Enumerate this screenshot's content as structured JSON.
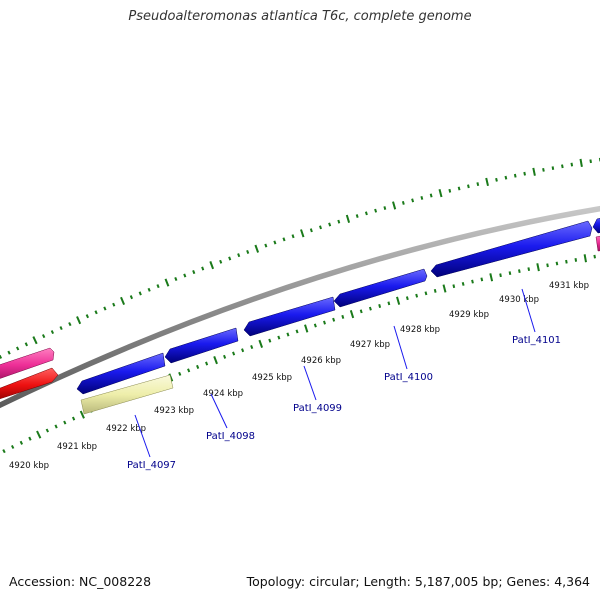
{
  "title": "Pseudoalteromonas atlantica T6c, complete genome",
  "footer": {
    "accession": "Accession: NC_008228",
    "summary": "Topology: circular; Length: 5,187,005 bp; Genes: 4,364"
  },
  "scale_labels": [
    "4920 kbp",
    "4921 kbp",
    "4922 kbp",
    "4923 kbp",
    "4924 kbp",
    "4925 kbp",
    "4926 kbp",
    "4927 kbp",
    "4928 kbp",
    "4929 kbp",
    "4930 kbp",
    "4931 kbp"
  ],
  "gene_labels": [
    "PatI_4097",
    "PatI_4098",
    "PatI_4099",
    "PatI_4100",
    "PatI_4101"
  ],
  "colors": {
    "forward_cds": "#1a1aee",
    "reverse_cds": "#eeeeaa",
    "pink_feature": "#ee2f97",
    "red_feature": "#ee1111",
    "backbone": "#8c8c8c",
    "tick": "#1a7a1a",
    "gene_label": "#00008b"
  }
}
